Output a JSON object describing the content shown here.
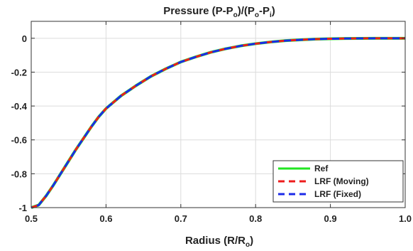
{
  "chart_data": {
    "type": "line",
    "title": {
      "base": "Pressure (P-P",
      "sub1": "o",
      "mid": ")/(P",
      "sub2": "o",
      "mid2": "-P",
      "sub3": "i",
      "end": ")"
    },
    "xlabel": {
      "base": "Radius (R/R",
      "sub": "o",
      "end": ")"
    },
    "ylabel": "",
    "xlim": [
      0.5,
      1.0
    ],
    "ylim": [
      -1.0,
      0.1
    ],
    "xticks": [
      0.5,
      0.6,
      0.7,
      0.8,
      0.9,
      1.0
    ],
    "xtick_labels": [
      "0.5",
      "0.6",
      "0.7",
      "0.8",
      "0.9",
      "1.0"
    ],
    "yticks": [
      0,
      -0.2,
      -0.4,
      -0.6,
      -0.8,
      -1
    ],
    "ytick_labels": [
      "0",
      "-0.2",
      "-0.4",
      "-0.6",
      "-0.8",
      "-1"
    ],
    "grid": true,
    "legend_position": "bottom-right",
    "x": [
      0.5,
      0.51,
      0.52,
      0.53,
      0.54,
      0.55,
      0.56,
      0.57,
      0.58,
      0.59,
      0.6,
      0.62,
      0.64,
      0.66,
      0.68,
      0.7,
      0.72,
      0.74,
      0.76,
      0.78,
      0.8,
      0.82,
      0.84,
      0.86,
      0.88,
      0.9,
      0.92,
      0.94,
      0.96,
      0.98,
      1.0
    ],
    "series": [
      {
        "name": "Ref",
        "color": "#22e622",
        "style": "solid",
        "values": [
          -1.0,
          -0.985,
          -0.93,
          -0.865,
          -0.795,
          -0.725,
          -0.655,
          -0.59,
          -0.525,
          -0.465,
          -0.415,
          -0.34,
          -0.28,
          -0.225,
          -0.18,
          -0.14,
          -0.11,
          -0.083,
          -0.062,
          -0.045,
          -0.032,
          -0.022,
          -0.014,
          -0.009,
          -0.005,
          -0.003,
          -0.0015,
          -0.0008,
          -0.0003,
          -0.0001,
          0.0
        ]
      },
      {
        "name": "LRF (Moving)",
        "color": "#ee1c1c",
        "style": "dashed",
        "values": [
          -1.0,
          -0.985,
          -0.93,
          -0.865,
          -0.795,
          -0.725,
          -0.655,
          -0.59,
          -0.525,
          -0.465,
          -0.415,
          -0.34,
          -0.28,
          -0.225,
          -0.18,
          -0.14,
          -0.11,
          -0.083,
          -0.062,
          -0.045,
          -0.032,
          -0.022,
          -0.014,
          -0.009,
          -0.005,
          -0.003,
          -0.0015,
          -0.0008,
          -0.0003,
          -0.0001,
          0.0
        ]
      },
      {
        "name": "LRF (Fixed)",
        "color": "#1c2be8",
        "style": "dashed",
        "values": [
          -1.0,
          -0.985,
          -0.93,
          -0.865,
          -0.795,
          -0.725,
          -0.655,
          -0.59,
          -0.525,
          -0.465,
          -0.415,
          -0.34,
          -0.28,
          -0.225,
          -0.18,
          -0.14,
          -0.11,
          -0.083,
          -0.062,
          -0.045,
          -0.032,
          -0.022,
          -0.014,
          -0.009,
          -0.005,
          -0.003,
          -0.0015,
          -0.0008,
          -0.0003,
          -0.0001,
          0.0
        ]
      }
    ]
  }
}
